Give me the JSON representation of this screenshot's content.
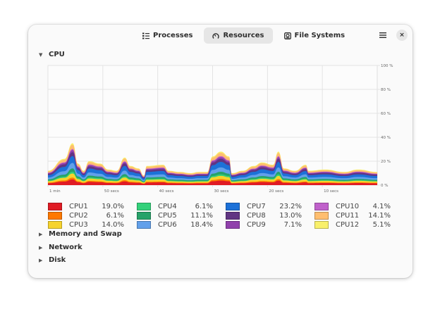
{
  "header": {
    "tabs": [
      {
        "label": "Processes",
        "icon": "list-icon",
        "active": false
      },
      {
        "label": "Resources",
        "icon": "gauge-icon",
        "active": true
      },
      {
        "label": "File Systems",
        "icon": "disk-icon",
        "active": false
      }
    ],
    "menu_icon": "hamburger-menu-icon",
    "close_label": "×"
  },
  "sections": {
    "cpu": {
      "label": "CPU",
      "expanded": true,
      "arrow": "▼"
    },
    "memory": {
      "label": "Memory and Swap",
      "expanded": false,
      "arrow": "▶"
    },
    "network": {
      "label": "Network",
      "expanded": false,
      "arrow": "▶"
    },
    "disk": {
      "label": "Disk",
      "expanded": false,
      "arrow": "▶"
    }
  },
  "chart_data": {
    "type": "area",
    "stacked": true,
    "grid": true,
    "x_ticks": [
      "1 min",
      "50 secs",
      "40 secs",
      "30 secs",
      "20 secs",
      "10 secs"
    ],
    "x_tick_values": [
      60,
      50,
      40,
      30,
      20,
      10
    ],
    "xlim": [
      60,
      0
    ],
    "y_ticks": [
      "100 %",
      "80 %",
      "60 %",
      "40 %",
      "20 %",
      "0 %"
    ],
    "y_tick_values": [
      100,
      80,
      60,
      40,
      20,
      0
    ],
    "ylim": [
      0,
      100
    ],
    "total_envelope": {
      "seconds_ago": [
        60,
        57,
        55.5,
        54.5,
        53.5,
        52.5,
        50.5,
        49,
        47.5,
        46,
        45,
        43.5,
        42.5,
        42,
        39,
        38,
        36,
        34,
        32.5,
        31,
        30,
        28.5,
        27,
        26.5,
        24.5,
        22.5,
        21,
        19,
        18,
        17,
        15,
        13,
        12.5,
        9.5,
        6,
        3.5,
        0
      ],
      "percent": [
        12,
        22,
        35,
        18,
        12,
        20,
        18,
        13,
        12,
        23,
        16,
        14,
        8,
        16,
        17,
        12,
        11,
        10,
        11,
        11,
        24,
        28,
        24,
        10,
        12,
        16,
        19,
        17,
        28,
        14,
        12,
        17,
        12,
        13,
        11,
        13,
        11
      ]
    },
    "series": [
      {
        "name": "CPU1",
        "value": "19.0%",
        "color": "#e01b24"
      },
      {
        "name": "CPU2",
        "value": "6.1%",
        "color": "#ff7800"
      },
      {
        "name": "CPU3",
        "value": "14.0%",
        "color": "#f6d32d"
      },
      {
        "name": "CPU4",
        "value": "6.1%",
        "color": "#33d17a"
      },
      {
        "name": "CPU5",
        "value": "11.1%",
        "color": "#26a269"
      },
      {
        "name": "CPU6",
        "value": "18.4%",
        "color": "#62a0ea"
      },
      {
        "name": "CPU7",
        "value": "23.2%",
        "color": "#1c71d8"
      },
      {
        "name": "CPU8",
        "value": "13.0%",
        "color": "#613583"
      },
      {
        "name": "CPU9",
        "value": "7.1%",
        "color": "#9141ac"
      },
      {
        "name": "CPU10",
        "value": "4.1%",
        "color": "#c061cb"
      },
      {
        "name": "CPU11",
        "value": "14.1%",
        "color": "#ffbe6f"
      },
      {
        "name": "CPU12",
        "value": "5.1%",
        "color": "#f9f06b"
      }
    ]
  }
}
